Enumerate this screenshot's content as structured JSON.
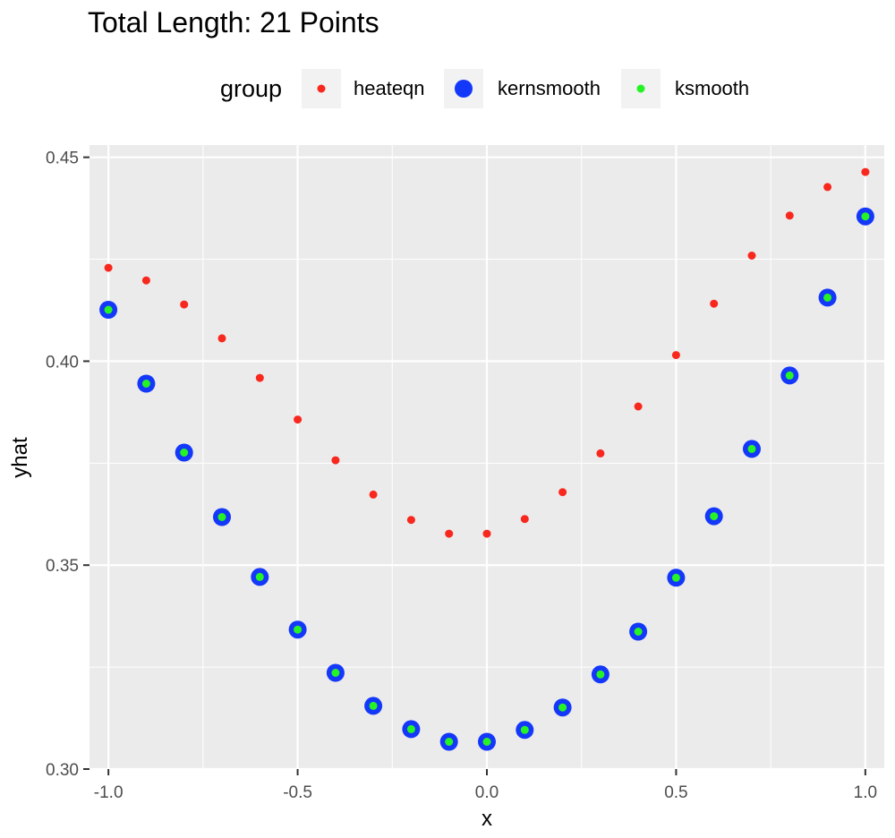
{
  "chart_data": {
    "type": "scatter",
    "title": "Total Length: 21 Points",
    "xlabel": "x",
    "ylabel": "yhat",
    "xlim": [
      -1.05,
      1.05
    ],
    "ylim": [
      0.3,
      0.453
    ],
    "x_ticks": [
      "-1.0",
      "-0.5",
      "0.0",
      "0.5",
      "1.0"
    ],
    "y_ticks": [
      "0.30",
      "0.35",
      "0.40",
      "0.45"
    ],
    "grid": true,
    "legend": {
      "title": "group",
      "position": "top"
    },
    "x": [
      -1.0,
      -0.9,
      -0.8,
      -0.7,
      -0.6,
      -0.5,
      -0.4,
      -0.3,
      -0.2,
      -0.1,
      0.0,
      0.1,
      0.2,
      0.3,
      0.4,
      0.5,
      0.6,
      0.7,
      0.8,
      0.9,
      1.0
    ],
    "series": [
      {
        "name": "heateqn",
        "color": "#f8281e",
        "values": [
          0.4229,
          0.4198,
          0.4139,
          0.4056,
          0.3959,
          0.3857,
          0.3757,
          0.3673,
          0.3611,
          0.3577,
          0.3577,
          0.3613,
          0.3679,
          0.3774,
          0.3889,
          0.4015,
          0.4141,
          0.4259,
          0.4357,
          0.4427,
          0.4464
        ]
      },
      {
        "name": "kernsmooth",
        "color": "#1438fa",
        "values": [
          0.4126,
          0.3945,
          0.3776,
          0.3618,
          0.3471,
          0.3342,
          0.3236,
          0.3155,
          0.3098,
          0.3067,
          0.3067,
          0.3096,
          0.3151,
          0.3232,
          0.3337,
          0.3469,
          0.362,
          0.3785,
          0.3965,
          0.4156,
          0.4355
        ]
      },
      {
        "name": "ksmooth",
        "color": "#26f326",
        "values": [
          0.4126,
          0.3945,
          0.3776,
          0.3618,
          0.3471,
          0.3342,
          0.3236,
          0.3155,
          0.3098,
          0.3067,
          0.3067,
          0.3096,
          0.3151,
          0.3232,
          0.3337,
          0.3469,
          0.362,
          0.3785,
          0.3965,
          0.4156,
          0.4355
        ]
      }
    ]
  }
}
